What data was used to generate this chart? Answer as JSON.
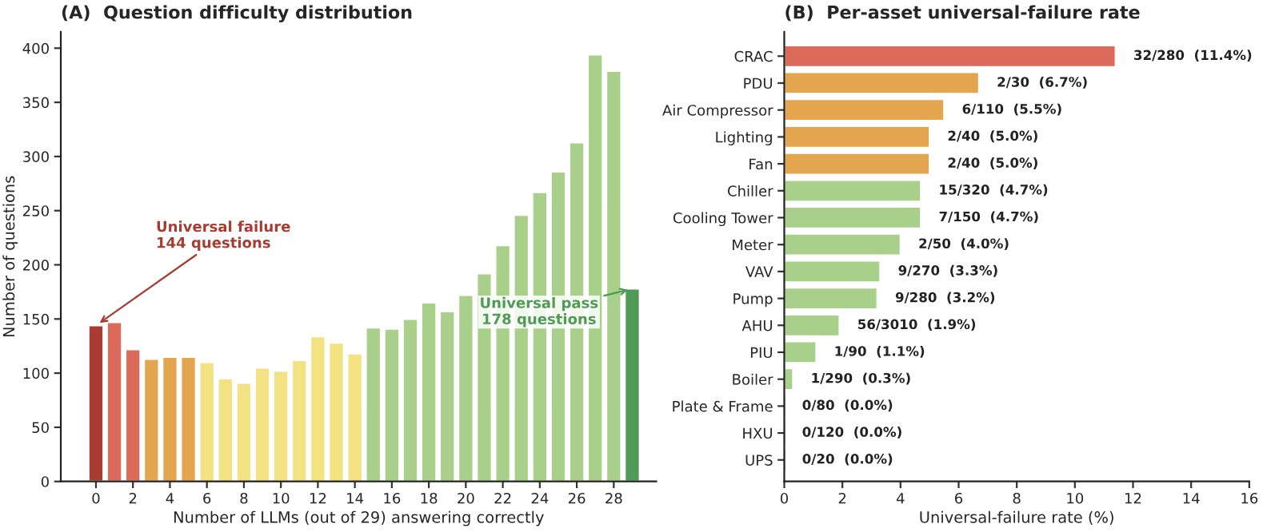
{
  "chart_data": [
    {
      "type": "bar",
      "title": "(A)  Question difficulty distribution",
      "xlabel": "Number of LLMs (out of 29) answering correctly",
      "ylabel": "Number of questions",
      "x": [
        0,
        1,
        2,
        3,
        4,
        5,
        6,
        7,
        8,
        9,
        10,
        11,
        12,
        13,
        14,
        15,
        16,
        17,
        18,
        19,
        20,
        21,
        22,
        23,
        24,
        25,
        26,
        27,
        28,
        29
      ],
      "values": [
        144,
        147,
        122,
        113,
        115,
        115,
        110,
        95,
        91,
        105,
        102,
        112,
        134,
        128,
        118,
        142,
        141,
        150,
        165,
        157,
        172,
        192,
        218,
        246,
        267,
        286,
        313,
        394,
        379,
        178
      ],
      "colors": [
        "#a83c32",
        "#dc6a5a",
        "#dc6a5a",
        "#e3a64e",
        "#e3a64e",
        "#e3a64e",
        "#f2e282",
        "#f2e282",
        "#f2e282",
        "#f2e282",
        "#f2e282",
        "#f2e282",
        "#f2e282",
        "#f2e282",
        "#f2e282",
        "#a8d08a",
        "#a8d08a",
        "#a8d08a",
        "#a8d08a",
        "#a8d08a",
        "#a8d08a",
        "#a8d08a",
        "#a8d08a",
        "#a8d08a",
        "#a8d08a",
        "#a8d08a",
        "#a8d08a",
        "#a8d08a",
        "#a8d08a",
        "#4e9a56"
      ],
      "xlim": [
        -1.9,
        30.3
      ],
      "xticks": [
        0,
        2,
        4,
        6,
        8,
        10,
        12,
        14,
        16,
        18,
        20,
        22,
        24,
        26,
        28
      ],
      "ylim": [
        0,
        415
      ],
      "yticks": [
        0,
        50,
        100,
        150,
        200,
        250,
        300,
        350,
        400
      ],
      "annotations": [
        {
          "text": "Universal failure\n144 questions",
          "x": 0,
          "y": 144
        },
        {
          "text": "Universal pass\n178 questions",
          "x": 29,
          "y": 178
        }
      ],
      "grid": false,
      "legend": false
    },
    {
      "type": "bar",
      "orientation": "horizontal",
      "title": "(B)  Per-asset universal-failure rate",
      "xlabel": "Universal-failure rate (%)",
      "categories": [
        "CRAC",
        "PDU",
        "Air Compressor",
        "Lighting",
        "Fan",
        "Chiller",
        "Cooling Tower",
        "Meter",
        "VAV",
        "Pump",
        "AHU",
        "PIU",
        "Boiler",
        "Plate & Frame",
        "HXU",
        "UPS"
      ],
      "values": [
        11.4,
        6.7,
        5.5,
        5.0,
        5.0,
        4.7,
        4.7,
        4.0,
        3.3,
        3.2,
        1.9,
        1.1,
        0.3,
        0.0,
        0.0,
        0.0
      ],
      "value_labels": [
        "32/280  (11.4%)",
        "2/30  (6.7%)",
        "6/110  (5.5%)",
        "2/40  (5.0%)",
        "2/40  (5.0%)",
        "15/320  (4.7%)",
        "7/150  (4.7%)",
        "2/50  (4.0%)",
        "9/270  (3.3%)",
        "9/280  (3.2%)",
        "56/3010  (1.9%)",
        "1/90  (1.1%)",
        "1/290  (0.3%)",
        "0/80  (0.0%)",
        "0/120  (0.0%)",
        "0/20  (0.0%)"
      ],
      "colors": [
        "#dc6a5a",
        "#e3a64e",
        "#e3a64e",
        "#e3a64e",
        "#e3a64e",
        "#a8d08a",
        "#a8d08a",
        "#a8d08a",
        "#a8d08a",
        "#a8d08a",
        "#a8d08a",
        "#a8d08a",
        "#a8d08a",
        "#a8d08a",
        "#a8d08a",
        "#a8d08a"
      ],
      "xlim": [
        0,
        16
      ],
      "xticks": [
        0,
        2,
        4,
        6,
        8,
        10,
        12,
        14,
        16
      ],
      "grid": false,
      "legend": false
    }
  ]
}
